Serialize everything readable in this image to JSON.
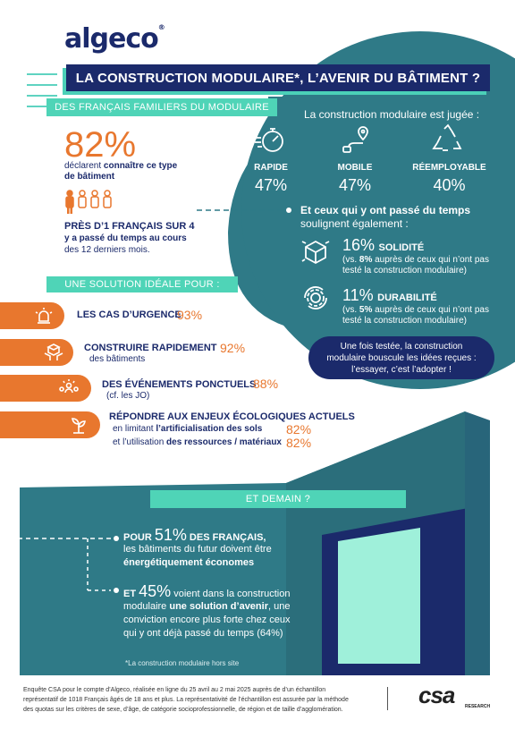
{
  "logo": {
    "text": "algeco",
    "reg": "®"
  },
  "title": "LA CONSTRUCTION MODULAIRE*, L’AVENIR DU BÂTIMENT ?",
  "familiers": {
    "label": "DES FRANÇAIS FAMILIERS DU MODULAIRE",
    "pct": "82%",
    "line1_a": "déclarent ",
    "line1_b": "connaître ce type",
    "line2": "de bâtiment",
    "stat_title": "PRÈS D’1 FRANÇAIS SUR 4",
    "stat_line1": "y a passé du temps au cours",
    "stat_line2": "des 12 derniers mois."
  },
  "jugee": {
    "heading": "La construction modulaire est jugée :",
    "items": [
      {
        "icon": "stopwatch-icon",
        "label": "RAPIDE",
        "pct": "47%"
      },
      {
        "icon": "location-route-icon",
        "label": "MOBILE",
        "pct": "47%"
      },
      {
        "icon": "recycle-icon",
        "label": "RÉEMPLOYABLE",
        "pct": "40%"
      }
    ]
  },
  "passe": {
    "heading1": "Et ceux qui y ont passé du temps",
    "heading2": "soulignent également :",
    "solidite": {
      "pct": "16%",
      "label": "SOLIDITÉ",
      "vs_a": "(vs. ",
      "vs_b": "8%",
      "vs_c": " auprès de ceux qui n’ont pas",
      "vs_d": "testé la construction modulaire)"
    },
    "durabilite": {
      "pct": "11%",
      "label": "DURABILITÉ",
      "vs_a": "(vs. ",
      "vs_b": "5%",
      "vs_c": " auprès de ceux qui n’ont pas",
      "vs_d": "testé la construction modulaire)"
    },
    "bubble1": "Une fois testée, la construction",
    "bubble2": "modulaire bouscule les idées reçues :",
    "bubble3": "l’essayer, c’est l’adopter !"
  },
  "solution": {
    "label": "UNE SOLUTION IDÉALE POUR :",
    "urgence": {
      "text": "LES CAS D’URGENCE",
      "pct": "93%"
    },
    "rapide": {
      "text": "CONSTRUIRE RAPIDEMENT",
      "sub": "des bâtiments",
      "pct": "92%"
    },
    "evenements": {
      "text": "DES ÉVÉNEMENTS PONCTUELS",
      "sub": "(cf. les JO)",
      "pct": "88%"
    },
    "eco": {
      "text": "RÉPONDRE AUX ENJEUX ÉCOLOGIQUES ACTUELS",
      "sub1_a": "en limitant ",
      "sub1_b": "l’artificialisation des sols",
      "pct1": "82%",
      "sub2_a": "et l’utilisation ",
      "sub2_b": "des ressources / matériaux",
      "pct2": "82%"
    }
  },
  "demain": {
    "label": "ET DEMAIN ?",
    "p1_a": "POUR ",
    "p1_pct": "51%",
    "p1_b": " DES FRANÇAIS,",
    "p1_l2": "les bâtiments du futur doivent être",
    "p1_l3": "énergétiquement économes",
    "p2_a": "ET ",
    "p2_pct": "45%",
    "p2_b": " voient dans la construction",
    "p2_l2a": "modulaire ",
    "p2_l2b": "une solution d’avenir",
    "p2_l2c": ", une",
    "p2_l3": "conviction encore plus forte chez ceux",
    "p2_l4": "qui y ont déjà passé du temps (64%)",
    "footnote": "*La construction modulaire hors site"
  },
  "footer": {
    "line1": "Enquête CSA pour le compte d’Algeco, réalisée en ligne du 25 avril au 2 mai 2025 auprès de d’un échantillon",
    "line2": "représentatif de 1018 Français âgés de 18 ans et plus. La représentativité de l’échantillon est assurée par la méthode",
    "line3": "des quotas sur les critères de sexe, d’âge, de catégorie socioprofessionnelle, de région et de taille d’agglomération.",
    "csa": "csa",
    "research": "RESEARCH"
  },
  "colors": {
    "navy": "#1b2a6b",
    "teal": "#2f7a87",
    "mint": "#4fd4b7",
    "orange": "#e8772e"
  }
}
